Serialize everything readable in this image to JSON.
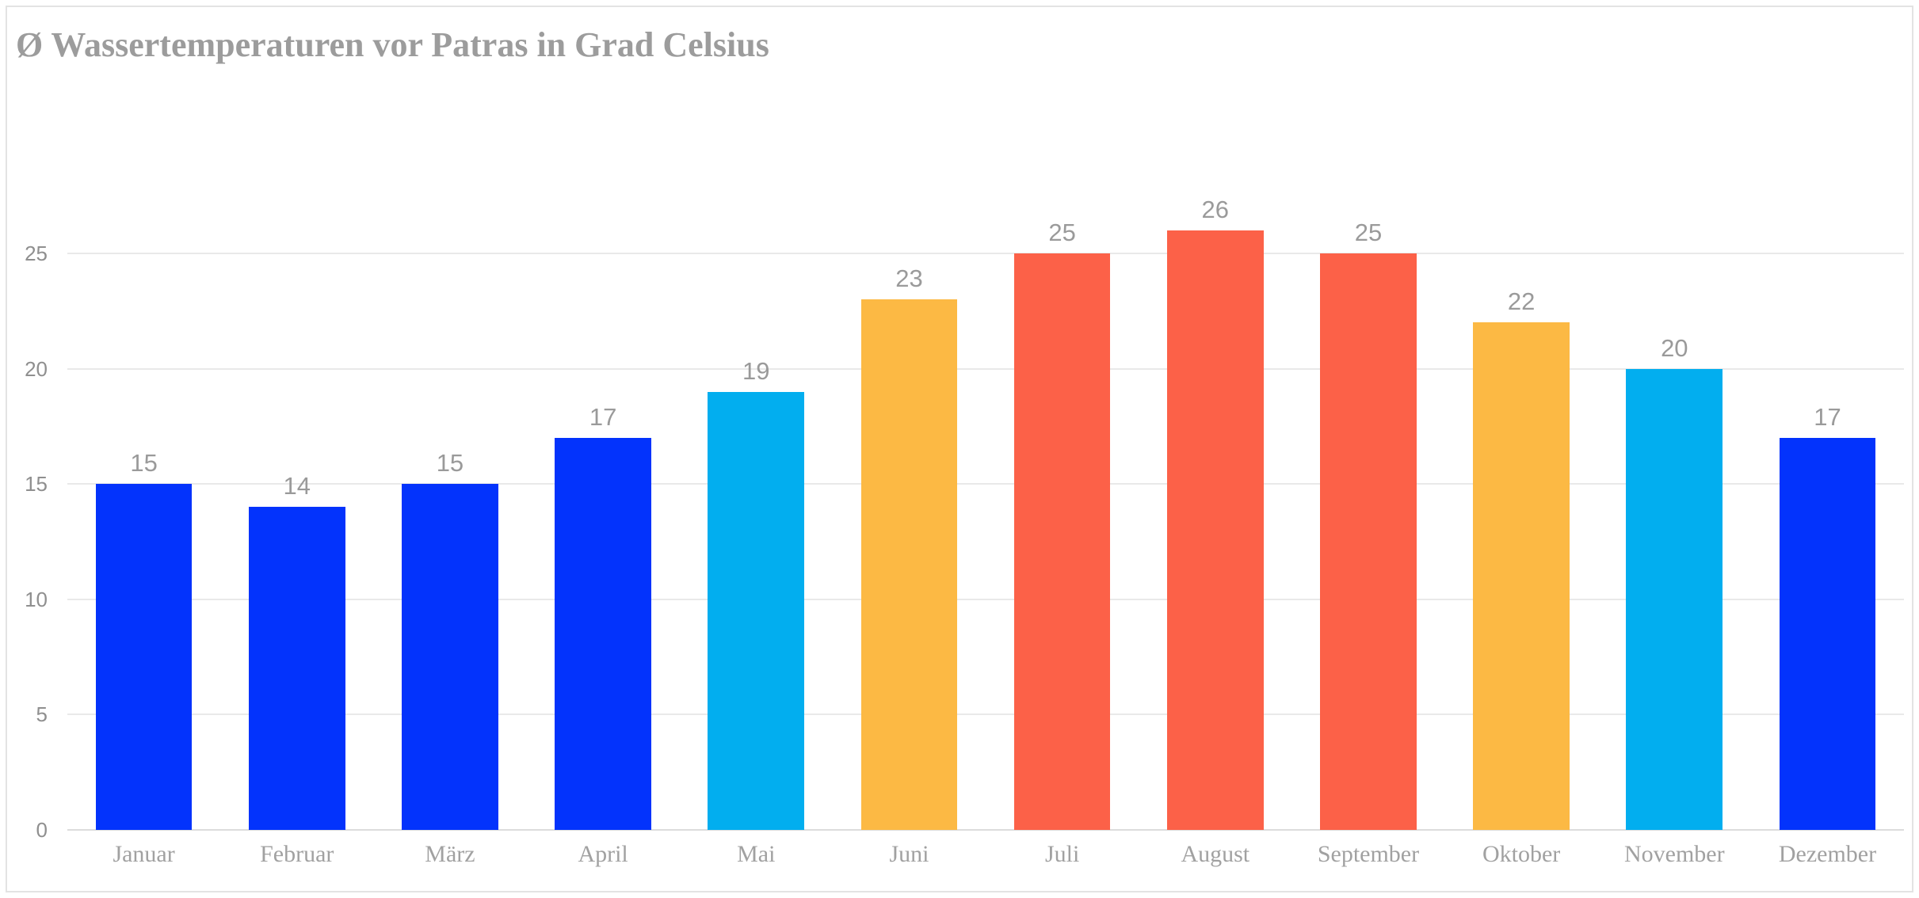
{
  "page": {
    "background": "#ffffff",
    "frame_border_color": "#e3e3e3"
  },
  "chart_data": {
    "type": "bar",
    "title": "Ø Wassertemperaturen vor Patras in Grad Celsius",
    "categories": [
      "Januar",
      "Februar",
      "März",
      "April",
      "Mai",
      "Juni",
      "Juli",
      "August",
      "September",
      "Oktober",
      "November",
      "Dezember"
    ],
    "values": [
      15,
      14,
      15,
      17,
      19,
      23,
      25,
      26,
      25,
      22,
      20,
      17
    ],
    "bar_colors": [
      "#0333fc",
      "#0333fc",
      "#0333fc",
      "#0333fc",
      "#02aeef",
      "#fcb944",
      "#fc6148",
      "#fc6148",
      "#fc6148",
      "#fcb944",
      "#02aeef",
      "#0333fc"
    ],
    "xlabel": "",
    "ylabel": "",
    "yticks": [
      0,
      5,
      10,
      15,
      20,
      25
    ],
    "ylim": [
      0,
      30.5
    ],
    "grid": "horizontal",
    "legend": "none",
    "data_labels_shown": true
  },
  "colors": {
    "title_text": "#9c9c9c",
    "value_label_text": "#9a9a9a",
    "axis_tick_text": "#8f8f8f",
    "month_label_text": "#a1a1a1",
    "gridline": "#e9e9e9",
    "axis_line": "#dcdcdc",
    "blue_bar": "#0333fc",
    "cyan_bar": "#02aeef",
    "orange_bar": "#fcb944",
    "red_bar": "#fc6148"
  }
}
